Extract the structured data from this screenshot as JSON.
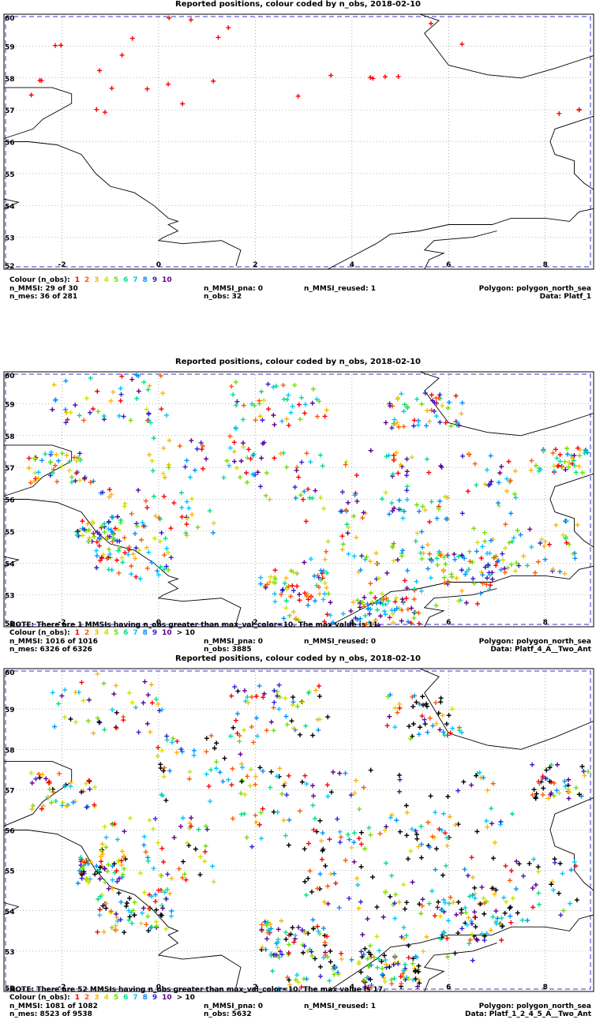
{
  "colors": {
    "1": "#ff0000",
    "2": "#ff5a00",
    "3": "#ffb400",
    "4": "#d0e000",
    "5": "#6ee000",
    "6": "#00e08a",
    "7": "#00c8ff",
    "8": "#0090ff",
    "9": "#3020d8",
    "10": "#600090",
    "gt10": "#000000"
  },
  "legend_labels": [
    "1",
    "2",
    "3",
    "4",
    "5",
    "6",
    "7",
    "8",
    "9",
    "10"
  ],
  "legend_gt10": "> 10",
  "colour_label": "Colour (n_obs):",
  "panels": [
    {
      "title": "Reported positions, colour coded by n_obs, 2018-02-10",
      "note": "",
      "show_gt10": false,
      "n_mmsi": "n_MMSI: 29 of 30",
      "n_mmsi_pna": "n_MMSI_pna: 0",
      "n_mmsi_reused": "n_MMSI_reused: 1",
      "polygon": "Polygon: polygon_north_sea",
      "n_mes": "n_mes: 36 of 281",
      "n_obs": "n_obs: 32",
      "data": "Data: Platf_1",
      "seed": 11,
      "point_count": 32,
      "mix": "sparse"
    },
    {
      "title": "Reported positions, colour coded by n_obs, 2018-02-10",
      "note": "NOTE: There are 1 MMSIs having n_obs greater than max_val_color=10. The max value is 11.",
      "show_gt10": true,
      "n_mmsi": "n_MMSI: 1016 of 1016",
      "n_mmsi_pna": "n_MMSI_pna: 0",
      "n_mmsi_reused": "n_MMSI_reused: 0",
      "polygon": "Polygon: polygon_north_sea",
      "n_mes": "n_mes: 6326 of 6326",
      "n_obs": "n_obs: 3885",
      "data": "Data: Platf_4_A__Two_Ant",
      "seed": 23,
      "point_count": 900,
      "mix": "dense"
    },
    {
      "title": "Reported positions, colour coded by n_obs, 2018-02-10",
      "note": "NOTE: There are 52 MMSIs having n_obs greater than max_val_color=10. The max value is 17.",
      "show_gt10": true,
      "n_mmsi": "n_MMSI: 1081 of 1082",
      "n_mmsi_pna": "n_MMSI_pna: 0",
      "n_mmsi_reused": "n_MMSI_reused: 1",
      "polygon": "Polygon: polygon_north_sea",
      "n_mes": "n_mes: 8523 of 9538",
      "n_obs": "n_obs: 5632",
      "data": "Data: Platf_1_2_4_5_A__Two_Ant",
      "seed": 37,
      "point_count": 1000,
      "mix": "black"
    }
  ],
  "axes": {
    "x_ticks": [
      "-2",
      "0",
      "2",
      "4",
      "6",
      "8"
    ],
    "y_ticks": [
      "60",
      "59",
      "58",
      "57",
      "56",
      "55",
      "54",
      "53",
      "52"
    ]
  }
}
